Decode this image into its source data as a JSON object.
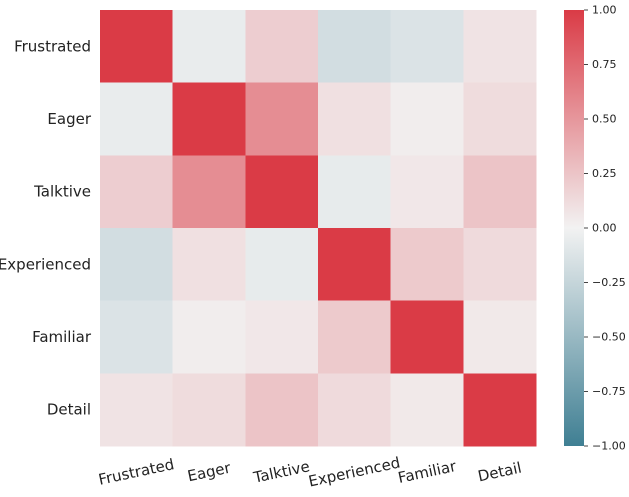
{
  "chart_data": {
    "type": "heatmap",
    "title": "",
    "xlabel": "",
    "ylabel": "",
    "row_labels": [
      "Frustrated",
      "Eager",
      "Talktive",
      "Experienced",
      "Familiar",
      "Detail"
    ],
    "col_labels": [
      "Frustrated",
      "Eager",
      "Talktive",
      "Experienced",
      "Familiar",
      "Detail"
    ],
    "values": [
      [
        1.0,
        -0.05,
        0.2,
        -0.18,
        -0.13,
        0.08
      ],
      [
        -0.05,
        1.0,
        0.55,
        0.1,
        0.03,
        0.12
      ],
      [
        0.2,
        0.55,
        1.0,
        -0.06,
        0.06,
        0.25
      ],
      [
        -0.18,
        0.1,
        -0.06,
        1.0,
        0.22,
        0.13
      ],
      [
        -0.13,
        0.03,
        0.06,
        0.22,
        1.0,
        0.05
      ],
      [
        0.08,
        0.12,
        0.25,
        0.13,
        0.05,
        1.0
      ]
    ],
    "colorbar": {
      "vmin": -1.0,
      "vmax": 1.0,
      "tick_values": [
        -1.0,
        -0.75,
        -0.5,
        -0.25,
        0.0,
        0.25,
        0.5,
        0.75,
        1.0
      ],
      "tick_labels": [
        "−1.00",
        "−0.75",
        "−0.50",
        "−0.25",
        "0.00",
        "0.25",
        "0.50",
        "0.75",
        "1.00"
      ]
    },
    "colors": {
      "negative": "#3f7f93",
      "neutral": "#f2f2f2",
      "positive": "#da3b46"
    }
  }
}
